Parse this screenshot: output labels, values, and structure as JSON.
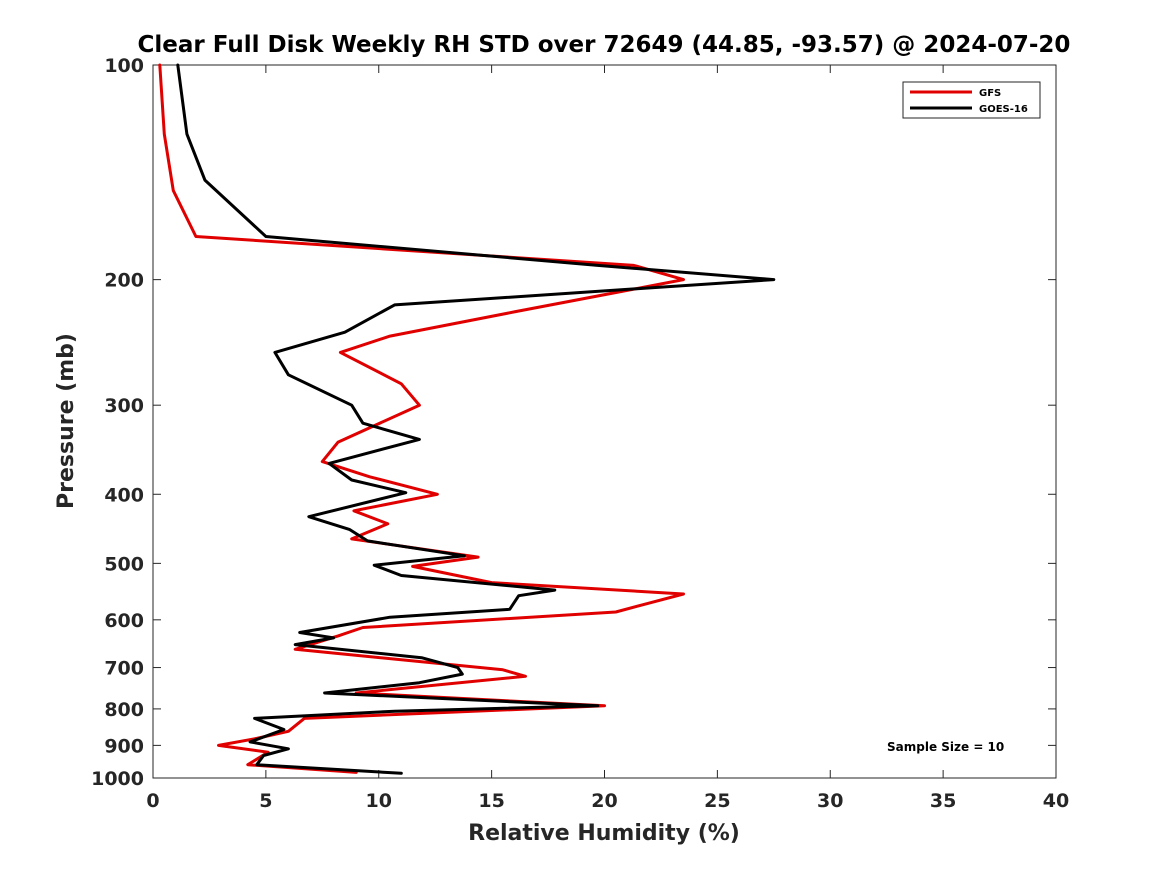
{
  "chart_data": {
    "type": "line",
    "title": "Clear Full Disk Weekly RH STD over 72649 (44.85, -93.57) @ 2024-07-20",
    "xlabel": "Relative Humidity (%)",
    "ylabel": "Pressure (mb)",
    "xlim": [
      0,
      40
    ],
    "ylim": [
      1000,
      100
    ],
    "y_scale": "log",
    "x_ticks": [
      0,
      5,
      10,
      15,
      20,
      25,
      30,
      35,
      40
    ],
    "y_ticks": [
      100,
      200,
      300,
      400,
      500,
      600,
      700,
      800,
      900,
      1000
    ],
    "grid": false,
    "legend_position": "top-right",
    "annotation": "Sample Size = 10",
    "series": [
      {
        "name": "GFS",
        "color": "#e00000",
        "points": [
          [
            0.3,
            100
          ],
          [
            0.5,
            125
          ],
          [
            0.9,
            150
          ],
          [
            1.9,
            174
          ],
          [
            21.3,
            191
          ],
          [
            23.5,
            200
          ],
          [
            16.0,
            222
          ],
          [
            10.5,
            240
          ],
          [
            8.3,
            253
          ],
          [
            11.0,
            280
          ],
          [
            11.8,
            300
          ],
          [
            8.2,
            338
          ],
          [
            7.5,
            360
          ],
          [
            9.6,
            378
          ],
          [
            12.6,
            400
          ],
          [
            8.9,
            422
          ],
          [
            10.4,
            440
          ],
          [
            8.8,
            462
          ],
          [
            14.4,
            490
          ],
          [
            11.5,
            505
          ],
          [
            15.0,
            532
          ],
          [
            23.5,
            552
          ],
          [
            22.0,
            568
          ],
          [
            20.5,
            585
          ],
          [
            9.3,
            615
          ],
          [
            8.2,
            632
          ],
          [
            6.3,
            660
          ],
          [
            15.5,
            705
          ],
          [
            16.5,
            720
          ],
          [
            9.0,
            760
          ],
          [
            20.0,
            792
          ],
          [
            6.7,
            825
          ],
          [
            6.0,
            860
          ],
          [
            4.6,
            880
          ],
          [
            2.9,
            900
          ],
          [
            5.1,
            920
          ],
          [
            4.2,
            958
          ],
          [
            9.0,
            982
          ]
        ]
      },
      {
        "name": "GOES-16",
        "color": "#000000",
        "points": [
          [
            1.1,
            100
          ],
          [
            1.5,
            125
          ],
          [
            2.3,
            145
          ],
          [
            5.0,
            174
          ],
          [
            19.7,
            191
          ],
          [
            27.5,
            200
          ],
          [
            10.7,
            217
          ],
          [
            8.5,
            237
          ],
          [
            5.4,
            253
          ],
          [
            6.0,
            272
          ],
          [
            8.8,
            300
          ],
          [
            9.3,
            318
          ],
          [
            11.8,
            335
          ],
          [
            7.8,
            362
          ],
          [
            8.8,
            382
          ],
          [
            11.2,
            398
          ],
          [
            6.9,
            430
          ],
          [
            8.7,
            448
          ],
          [
            9.5,
            465
          ],
          [
            13.8,
            488
          ],
          [
            9.8,
            503
          ],
          [
            11.0,
            520
          ],
          [
            17.8,
            545
          ],
          [
            16.2,
            555
          ],
          [
            15.8,
            580
          ],
          [
            10.5,
            595
          ],
          [
            6.5,
            625
          ],
          [
            8.0,
            636
          ],
          [
            6.3,
            650
          ],
          [
            11.9,
            678
          ],
          [
            13.5,
            700
          ],
          [
            13.7,
            715
          ],
          [
            11.8,
            735
          ],
          [
            7.6,
            760
          ],
          [
            19.7,
            792
          ],
          [
            10.7,
            806
          ],
          [
            4.5,
            825
          ],
          [
            5.8,
            855
          ],
          [
            4.3,
            890
          ],
          [
            6.0,
            910
          ],
          [
            4.9,
            930
          ],
          [
            4.6,
            958
          ],
          [
            11.0,
            985
          ]
        ]
      }
    ]
  }
}
